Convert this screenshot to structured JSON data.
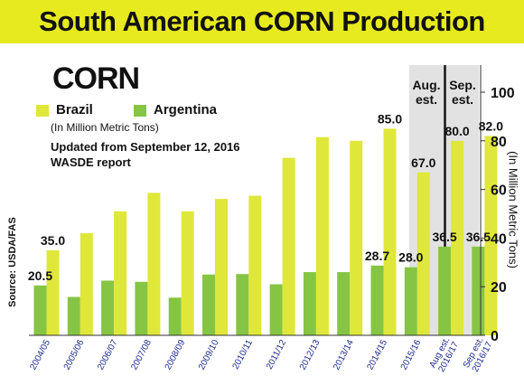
{
  "page_title": "South American CORN Production",
  "crop_label": "CORN",
  "units_note": "(In Million Metric Tons)",
  "updated_note": "Updated from  September 12, 2016 WASDE report",
  "source_note": "Source: USDA/FAS",
  "colors": {
    "banner": "#e6ea1e",
    "brazil": "#dfe73a",
    "argentina": "#86c543",
    "estimate_panel": "#e2e2e2",
    "axis": "#333333"
  },
  "chart_data": {
    "type": "bar",
    "categories": [
      "2004/05",
      "2005/06",
      "2006/07",
      "2007/08",
      "2008/09",
      "2009/10",
      "2010/11",
      "2011/12",
      "2012/13",
      "2013/14",
      "2014/15",
      "2015/16",
      "Aug est. 2016/17",
      "Sep est. 2016/17"
    ],
    "category_lines": [
      [
        "2004/05"
      ],
      [
        "2005/06"
      ],
      [
        "2006/07"
      ],
      [
        "2007/08"
      ],
      [
        "2008/09"
      ],
      [
        "2009/10"
      ],
      [
        "2010/11"
      ],
      [
        "2011/12"
      ],
      [
        "2012/13"
      ],
      [
        "2013/14"
      ],
      [
        "2014/15"
      ],
      [
        "2015/16"
      ],
      [
        "Aug est.",
        "2016/17"
      ],
      [
        "Sep est.",
        "2016/17"
      ]
    ],
    "series": [
      {
        "name": "Brazil",
        "color": "#dfe73a",
        "values": [
          35.0,
          42.0,
          51.0,
          58.6,
          51.0,
          56.1,
          57.4,
          73.0,
          81.5,
          80.0,
          85.0,
          67.0,
          80.0,
          82.0
        ]
      },
      {
        "name": "Argentina",
        "color": "#86c543",
        "values": [
          20.5,
          15.8,
          22.5,
          22.0,
          15.5,
          25.0,
          25.2,
          21.0,
          26.0,
          26.0,
          28.7,
          28.0,
          36.5,
          36.5
        ]
      }
    ],
    "data_labels": [
      {
        "series": "Brazil",
        "index": 0,
        "text": "35.0"
      },
      {
        "series": "Argentina",
        "index": 0,
        "text": "20.5"
      },
      {
        "series": "Argentina",
        "index": 10,
        "text": "28.7"
      },
      {
        "series": "Brazil",
        "index": 10,
        "text": "85.0"
      },
      {
        "series": "Brazil",
        "index": 11,
        "text": "67.0"
      },
      {
        "series": "Argentina",
        "index": 11,
        "text": "28.0"
      },
      {
        "series": "Argentina",
        "index": 12,
        "text": "36.5"
      },
      {
        "series": "Brazil",
        "index": 12,
        "text": "80.0"
      },
      {
        "series": "Argentina",
        "index": 13,
        "text": "36.5"
      },
      {
        "series": "Brazil",
        "index": 13,
        "text": "82.0"
      }
    ],
    "estimate_labels": [
      "Aug. est.",
      "Sep. est."
    ],
    "ylabel": "(In Million Metric Tons)",
    "ylim": [
      0,
      100
    ],
    "yticks": [
      0,
      20,
      40,
      60,
      80,
      100
    ],
    "yaxis_position": "right",
    "grid": false,
    "legend": "top-left"
  }
}
